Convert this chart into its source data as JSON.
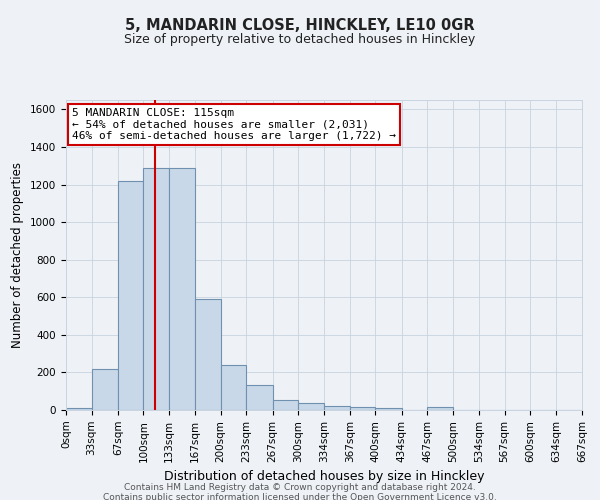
{
  "title": "5, MANDARIN CLOSE, HINCKLEY, LE10 0GR",
  "subtitle": "Size of property relative to detached houses in Hinckley",
  "xlabel": "Distribution of detached houses by size in Hinckley",
  "ylabel": "Number of detached properties",
  "bin_edges": [
    0,
    33,
    67,
    100,
    133,
    167,
    200,
    233,
    267,
    300,
    334,
    367,
    400,
    434,
    467,
    500,
    534,
    567,
    600,
    634,
    667
  ],
  "bar_heights": [
    10,
    220,
    1220,
    1290,
    1290,
    590,
    240,
    135,
    55,
    35,
    20,
    15,
    10,
    0,
    15,
    0,
    0,
    0,
    0,
    0
  ],
  "bar_color": "#c8d8e8",
  "bar_edge_color": "#7090b0",
  "bar_edge_width": 0.8,
  "red_line_x": 115,
  "red_line_color": "#cc0000",
  "annotation_line1": "5 MANDARIN CLOSE: 115sqm",
  "annotation_line2": "← 54% of detached houses are smaller (2,031)",
  "annotation_line3": "46% of semi-detached houses are larger (1,722) →",
  "annotation_box_color": "#ffffff",
  "annotation_box_edge_color": "#cc0000",
  "ylim": [
    0,
    1650
  ],
  "yticks": [
    0,
    200,
    400,
    600,
    800,
    1000,
    1200,
    1400,
    1600
  ],
  "grid_color": "#c8d4e0",
  "background_color": "#eef2f7",
  "footer_line1": "Contains HM Land Registry data © Crown copyright and database right 2024.",
  "footer_line2": "Contains public sector information licensed under the Open Government Licence v3.0.",
  "title_fontsize": 10.5,
  "subtitle_fontsize": 9,
  "xlabel_fontsize": 9,
  "ylabel_fontsize": 8.5,
  "annot_fontsize": 8,
  "tick_fontsize": 7.5,
  "footer_fontsize": 6.5
}
